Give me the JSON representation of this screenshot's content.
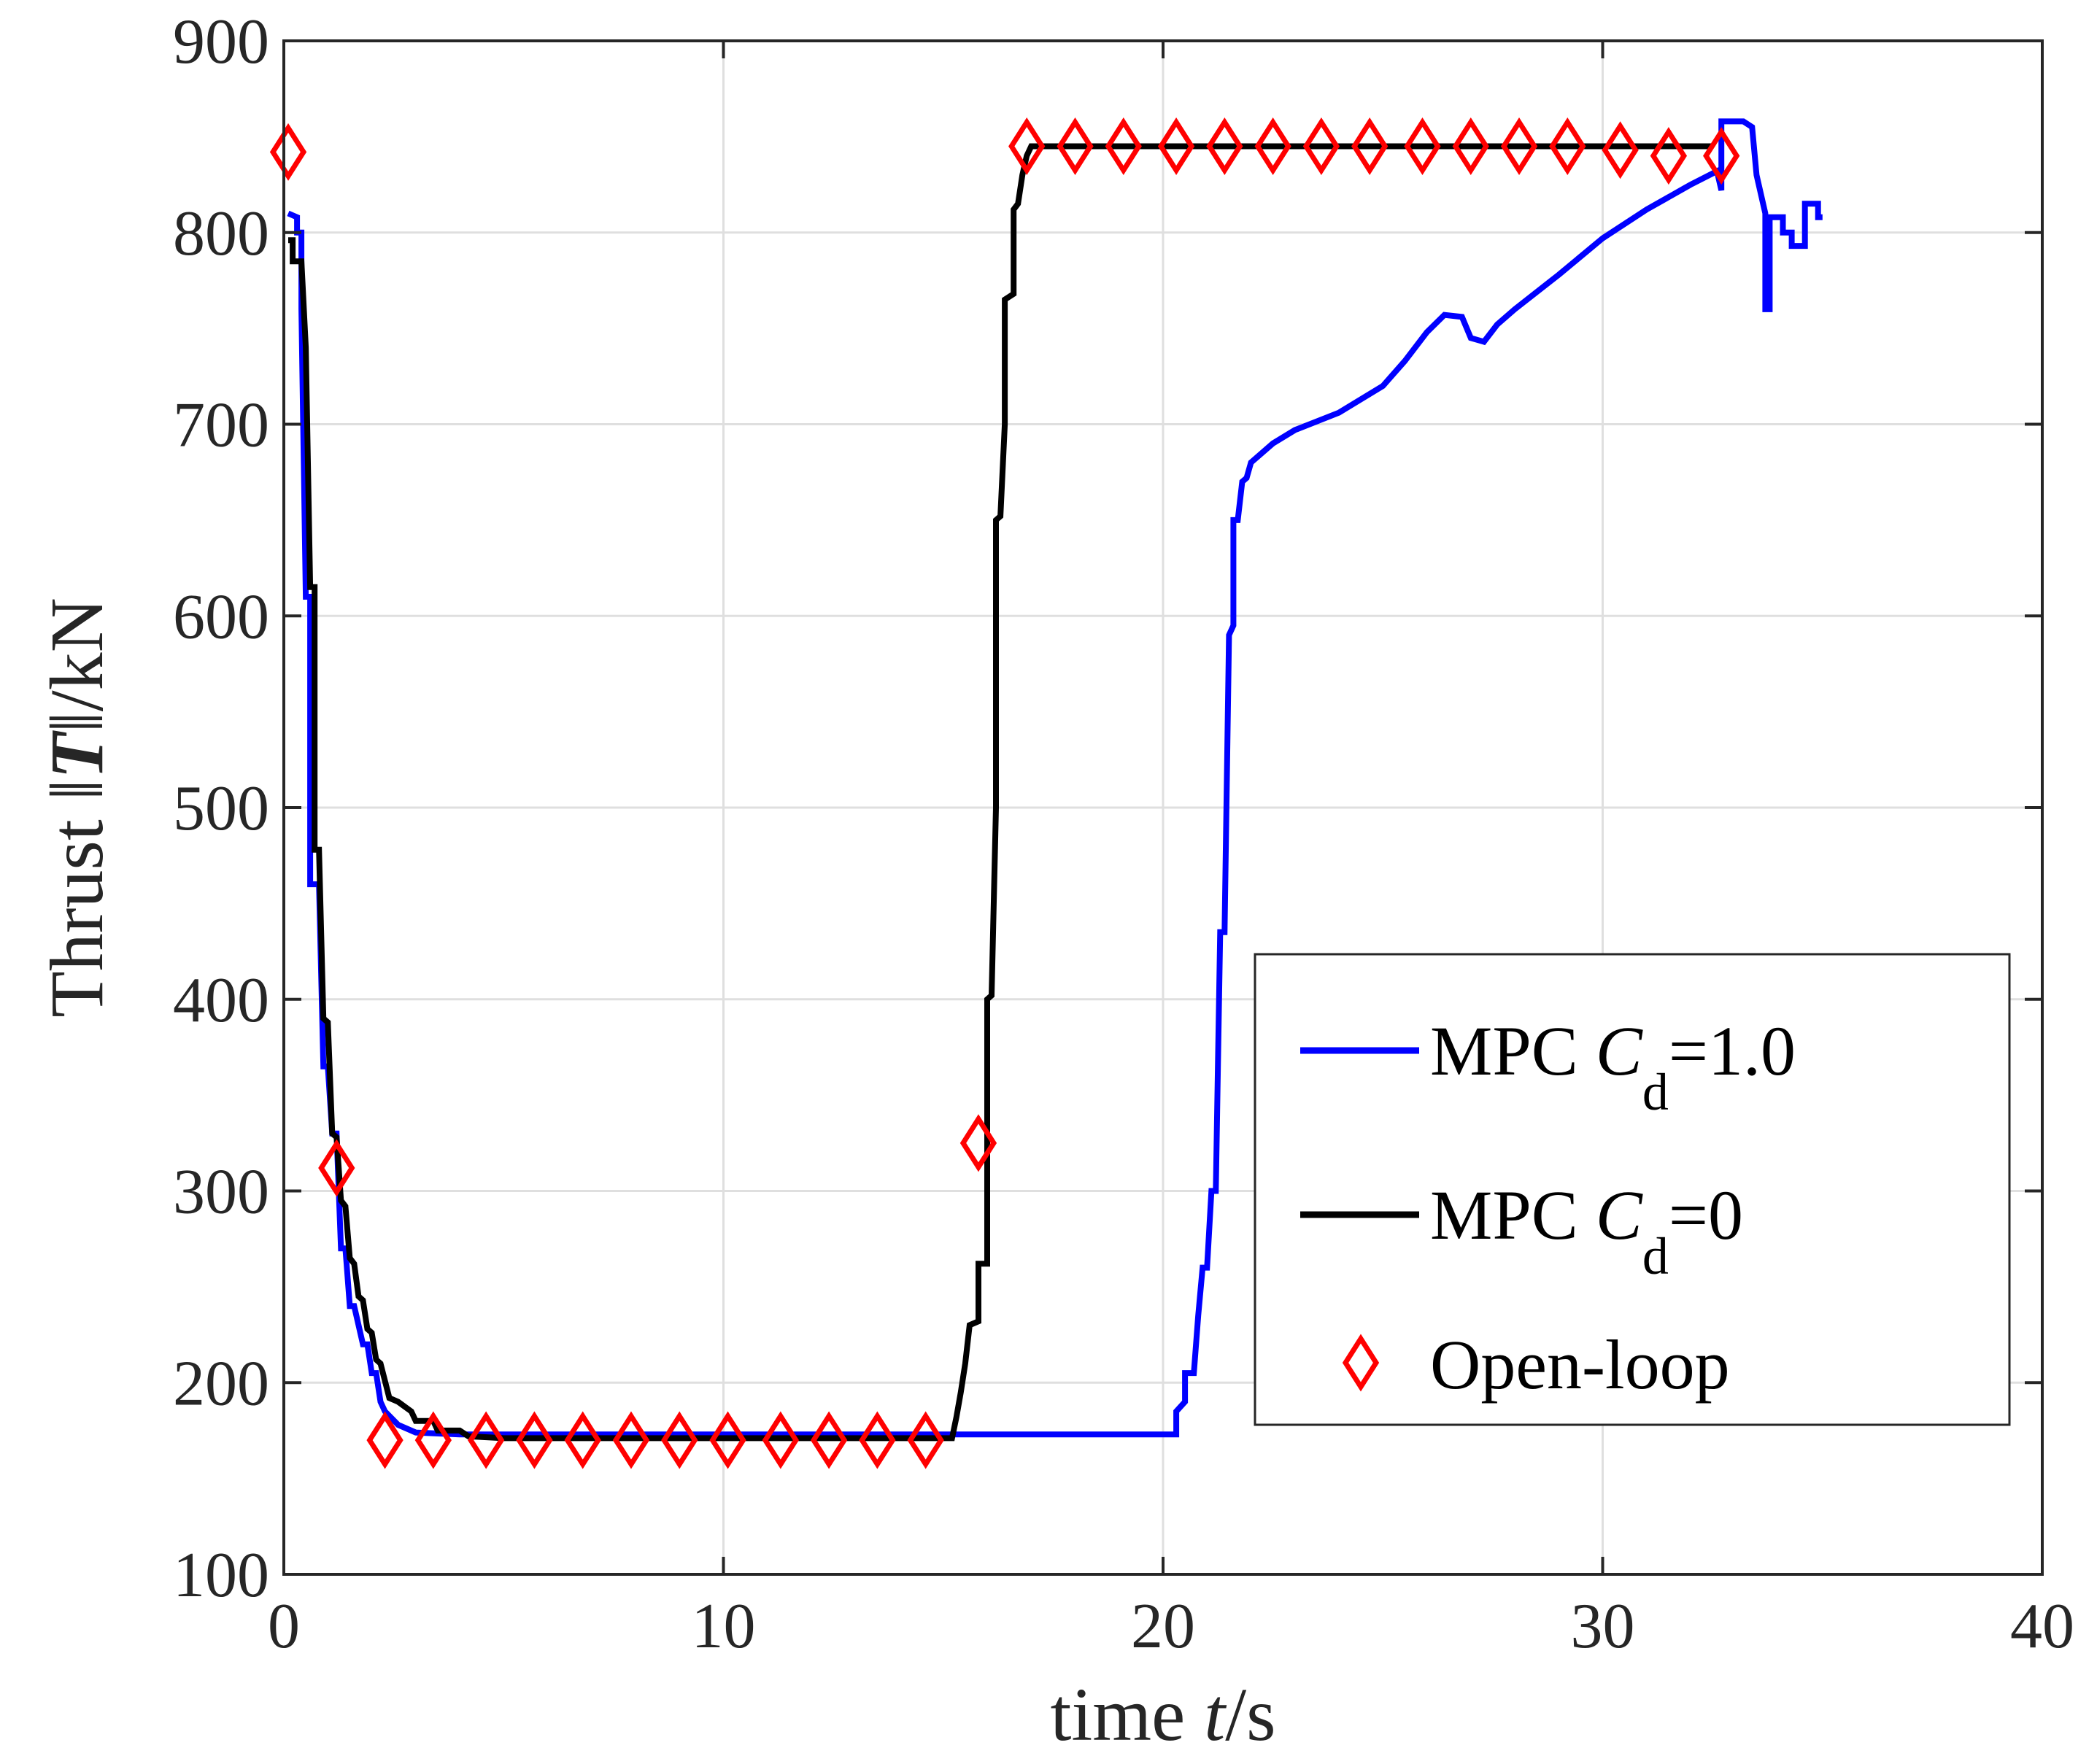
{
  "chart_data": {
    "type": "line",
    "title": "",
    "xlabel": {
      "prefix": "time ",
      "var": "t",
      "suffix": "/s"
    },
    "ylabel": {
      "prefix": "Thrust ",
      "var": "T",
      "suffix": "/kN"
    },
    "xlim": [
      0,
      40
    ],
    "ylim": [
      100,
      900
    ],
    "xticks": [
      0,
      10,
      20,
      30,
      40
    ],
    "yticks": [
      100,
      200,
      300,
      400,
      500,
      600,
      700,
      800,
      900
    ],
    "grid": true,
    "legend_position": "bottom-right",
    "series": [
      {
        "name": "MPC Cd=1.0",
        "legend_prefix": "MPC ",
        "legend_var": "C",
        "legend_sub": "d",
        "legend_suffix": "=1.0",
        "color": "#0000ff",
        "style": "line",
        "points": [
          [
            0.1,
            810
          ],
          [
            0.3,
            808
          ],
          [
            0.3,
            800
          ],
          [
            0.4,
            800
          ],
          [
            0.4,
            760
          ],
          [
            0.5,
            610
          ],
          [
            0.6,
            610
          ],
          [
            0.6,
            460
          ],
          [
            0.8,
            460
          ],
          [
            0.9,
            365
          ],
          [
            1.0,
            365
          ],
          [
            1.1,
            330
          ],
          [
            1.2,
            330
          ],
          [
            1.3,
            270
          ],
          [
            1.4,
            270
          ],
          [
            1.5,
            240
          ],
          [
            1.6,
            240
          ],
          [
            1.8,
            220
          ],
          [
            1.9,
            220
          ],
          [
            2.0,
            205
          ],
          [
            2.1,
            205
          ],
          [
            2.2,
            190
          ],
          [
            2.3,
            185
          ],
          [
            2.6,
            178
          ],
          [
            3.0,
            174
          ],
          [
            4.0,
            173
          ],
          [
            6.0,
            173
          ],
          [
            10.0,
            173
          ],
          [
            15.0,
            173
          ],
          [
            17.0,
            173
          ],
          [
            19.0,
            173
          ],
          [
            20.3,
            173
          ],
          [
            20.3,
            185
          ],
          [
            20.5,
            190
          ],
          [
            20.5,
            205
          ],
          [
            20.7,
            205
          ],
          [
            20.8,
            235
          ],
          [
            20.9,
            260
          ],
          [
            21.0,
            260
          ],
          [
            21.1,
            300
          ],
          [
            21.2,
            300
          ],
          [
            21.3,
            435
          ],
          [
            21.4,
            435
          ],
          [
            21.5,
            590
          ],
          [
            21.6,
            595
          ],
          [
            21.6,
            650
          ],
          [
            21.7,
            650
          ],
          [
            21.8,
            670
          ],
          [
            21.9,
            672
          ],
          [
            22.0,
            680
          ],
          [
            22.5,
            690
          ],
          [
            23.0,
            697
          ],
          [
            24.0,
            706
          ],
          [
            25.0,
            720
          ],
          [
            25.5,
            733
          ],
          [
            26.0,
            748
          ],
          [
            26.4,
            757
          ],
          [
            26.8,
            756
          ],
          [
            27.0,
            745
          ],
          [
            27.3,
            743
          ],
          [
            27.6,
            752
          ],
          [
            28.0,
            760
          ],
          [
            29.0,
            778
          ],
          [
            30.0,
            797
          ],
          [
            31.0,
            812
          ],
          [
            32.0,
            825
          ],
          [
            32.6,
            832
          ],
          [
            32.7,
            822
          ],
          [
            32.7,
            858
          ],
          [
            33.2,
            858
          ],
          [
            33.4,
            855
          ],
          [
            33.5,
            830
          ],
          [
            33.7,
            810
          ],
          [
            33.7,
            760
          ],
          [
            33.8,
            760
          ],
          [
            33.8,
            808
          ],
          [
            34.1,
            808
          ],
          [
            34.1,
            800
          ],
          [
            34.3,
            800
          ],
          [
            34.3,
            793
          ],
          [
            34.6,
            793
          ],
          [
            34.6,
            815
          ],
          [
            34.9,
            815
          ],
          [
            34.9,
            808
          ],
          [
            35.0,
            808
          ]
        ]
      },
      {
        "name": "MPC Cd=0",
        "legend_prefix": "MPC ",
        "legend_var": "C",
        "legend_sub": "d",
        "legend_suffix": "=0",
        "color": "#000000",
        "style": "line",
        "points": [
          [
            0.1,
            796
          ],
          [
            0.2,
            796
          ],
          [
            0.2,
            785
          ],
          [
            0.4,
            785
          ],
          [
            0.5,
            740
          ],
          [
            0.6,
            615
          ],
          [
            0.7,
            615
          ],
          [
            0.7,
            478
          ],
          [
            0.8,
            478
          ],
          [
            0.9,
            390
          ],
          [
            1.0,
            388
          ],
          [
            1.1,
            330
          ],
          [
            1.2,
            328
          ],
          [
            1.3,
            295
          ],
          [
            1.4,
            292
          ],
          [
            1.5,
            265
          ],
          [
            1.6,
            262
          ],
          [
            1.7,
            245
          ],
          [
            1.8,
            243
          ],
          [
            1.9,
            228
          ],
          [
            2.0,
            226
          ],
          [
            2.1,
            212
          ],
          [
            2.2,
            210
          ],
          [
            2.4,
            192
          ],
          [
            2.6,
            190
          ],
          [
            2.9,
            185
          ],
          [
            3.0,
            180
          ],
          [
            3.4,
            180
          ],
          [
            3.5,
            175
          ],
          [
            4.0,
            175
          ],
          [
            4.2,
            172
          ],
          [
            5.0,
            171
          ],
          [
            10.0,
            171
          ],
          [
            15.0,
            171
          ],
          [
            15.2,
            171
          ],
          [
            15.3,
            182
          ],
          [
            15.4,
            195
          ],
          [
            15.5,
            210
          ],
          [
            15.6,
            230
          ],
          [
            15.8,
            232
          ],
          [
            15.8,
            262
          ],
          [
            16.0,
            262
          ],
          [
            16.0,
            300
          ],
          [
            16.0,
            400
          ],
          [
            16.1,
            402
          ],
          [
            16.2,
            500
          ],
          [
            16.2,
            650
          ],
          [
            16.3,
            652
          ],
          [
            16.4,
            700
          ],
          [
            16.4,
            765
          ],
          [
            16.6,
            768
          ],
          [
            16.6,
            812
          ],
          [
            16.7,
            815
          ],
          [
            16.8,
            830
          ],
          [
            16.9,
            840
          ],
          [
            17.0,
            845
          ],
          [
            20.0,
            845
          ],
          [
            25.0,
            845
          ],
          [
            30.0,
            845
          ],
          [
            32.0,
            845
          ],
          [
            32.5,
            845
          ]
        ]
      },
      {
        "name": "Open-loop",
        "legend_label": "Open-loop",
        "color": "#ff0000",
        "style": "diamond",
        "points": [
          [
            0.1,
            842
          ],
          [
            1.2,
            312
          ],
          [
            2.3,
            170
          ],
          [
            3.4,
            170
          ],
          [
            4.6,
            170
          ],
          [
            5.7,
            170
          ],
          [
            6.8,
            170
          ],
          [
            7.9,
            170
          ],
          [
            9.0,
            170
          ],
          [
            10.1,
            170
          ],
          [
            11.3,
            170
          ],
          [
            12.4,
            170
          ],
          [
            13.5,
            170
          ],
          [
            14.6,
            170
          ],
          [
            15.8,
            325
          ],
          [
            16.9,
            845
          ],
          [
            18.0,
            845
          ],
          [
            19.1,
            845
          ],
          [
            20.3,
            845
          ],
          [
            21.4,
            845
          ],
          [
            22.5,
            845
          ],
          [
            23.6,
            845
          ],
          [
            24.7,
            845
          ],
          [
            25.9,
            845
          ],
          [
            27.0,
            845
          ],
          [
            28.1,
            845
          ],
          [
            29.2,
            845
          ],
          [
            30.4,
            843
          ],
          [
            31.5,
            840
          ],
          [
            32.7,
            840
          ]
        ]
      }
    ]
  }
}
